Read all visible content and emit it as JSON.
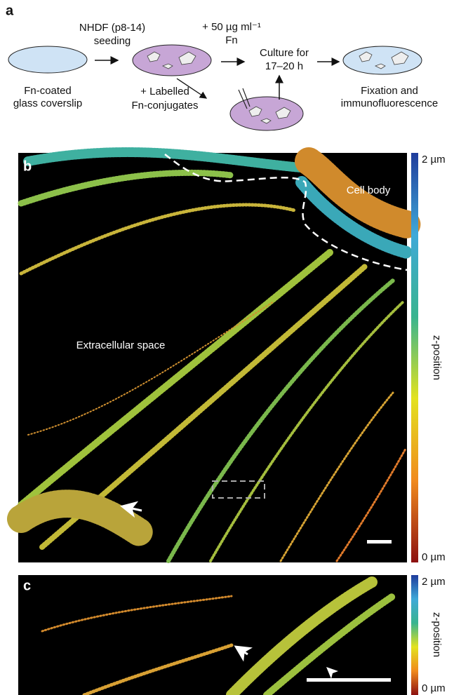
{
  "panel_a": {
    "label": "a",
    "seeding": [
      "NHDF (p8-14)",
      "seeding"
    ],
    "fn_addition": [
      "+ 50 µg ml⁻¹",
      "Fn"
    ],
    "culture": [
      "Culture for",
      "17–20 h"
    ],
    "coverslip": [
      "Fn-coated",
      "glass coverslip"
    ],
    "labelled": [
      "+ Labelled",
      "Fn-conjugates"
    ],
    "fixation": [
      "Fixation and",
      "immunofluorescence"
    ]
  },
  "panel_b": {
    "label": "b",
    "cell_body": "Cell body",
    "extracellular": "Extracellular space",
    "colorbar": {
      "top": "2 µm",
      "title": "z-position",
      "bottom": "0 µm"
    }
  },
  "panel_c": {
    "label": "c",
    "colorbar": {
      "top": "2 µm",
      "title": "z-position",
      "bottom": "0 µm"
    }
  }
}
